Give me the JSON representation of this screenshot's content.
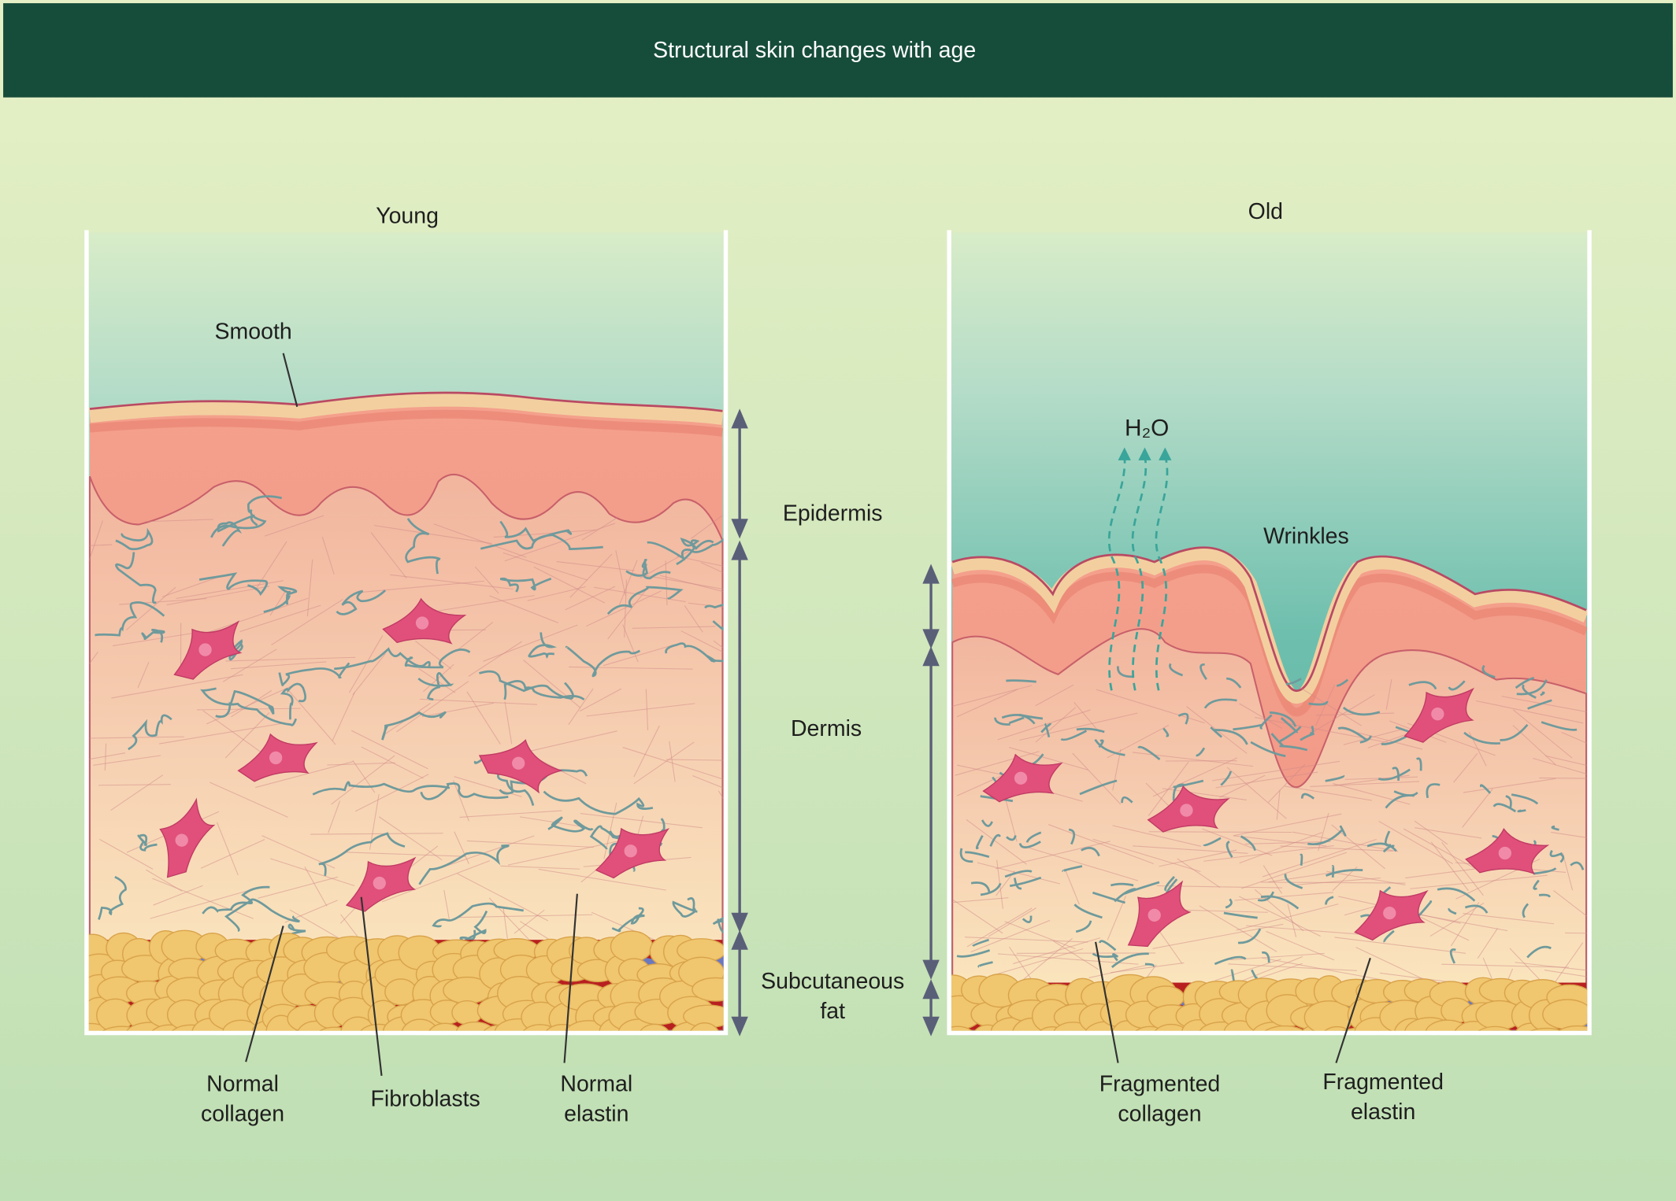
{
  "header": {
    "title": "Structural skin changes with age"
  },
  "young": {
    "title": "Young",
    "surface_label": "Smooth",
    "callouts": [
      [
        "Normal",
        "collagen"
      ],
      [
        "Fibroblasts"
      ],
      [
        "Normal",
        "elastin"
      ]
    ]
  },
  "old": {
    "title": "Old",
    "vapor_label": "H₂O",
    "surface_label": "Wrinkles",
    "callouts": [
      [
        "Fragmented",
        "collagen"
      ],
      [
        "Fragmented",
        "elastin"
      ]
    ]
  },
  "layers": [
    [
      "Epidermis"
    ],
    [
      "Dermis"
    ],
    [
      "Subcutaneous",
      "fat"
    ]
  ]
}
